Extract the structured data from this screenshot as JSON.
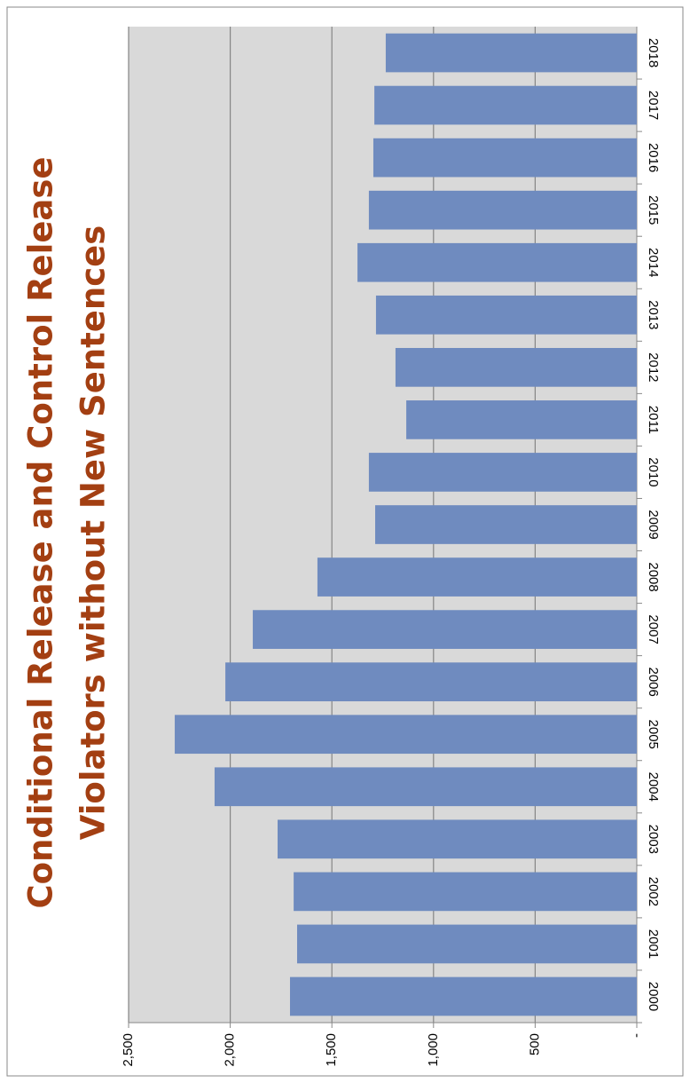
{
  "chart_data": {
    "type": "bar",
    "orientation": "rotated",
    "title": [
      "Conditional Release and Control Release",
      "Violators without New Sentences"
    ],
    "categories": [
      "2000",
      "2001",
      "2002",
      "2003",
      "2004",
      "2005",
      "2006",
      "2007",
      "2008",
      "2009",
      "2010",
      "2011",
      "2012",
      "2013",
      "2014",
      "2015",
      "2016",
      "2017",
      "2018"
    ],
    "values": [
      1706,
      1671,
      1688,
      1767,
      2077,
      2273,
      2024,
      1889,
      1571,
      1287,
      1318,
      1134,
      1187,
      1283,
      1374,
      1318,
      1296,
      1291,
      1235
    ],
    "color": "#6f8bbf",
    "ylim": [
      0,
      2500
    ],
    "yticks": [
      {
        "value": 0,
        "label": "-"
      },
      500,
      {
        "value": 1000,
        "label": "1,000"
      },
      {
        "value": 1500,
        "label": "1,500"
      },
      {
        "value": 2000,
        "label": "2,000"
      },
      {
        "value": 2500,
        "label": "2,500"
      }
    ],
    "grid": true
  }
}
